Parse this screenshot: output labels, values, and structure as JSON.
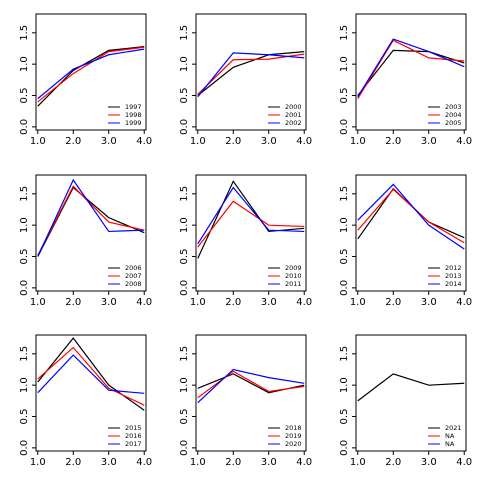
{
  "chart_data": [
    {
      "type": "line",
      "x": [
        1,
        2,
        3,
        4
      ],
      "xlim": [
        0.95,
        4.05
      ],
      "ylim": [
        -0.05,
        1.8
      ],
      "xticks": [
        {
          "value": 1,
          "label": "1.0"
        },
        {
          "value": 2,
          "label": "2.0"
        },
        {
          "value": 3,
          "label": "3.0"
        },
        {
          "value": 4,
          "label": "4.0"
        }
      ],
      "yticks": [
        {
          "value": 0,
          "label": "0.0"
        },
        0.5,
        {
          "value": 1,
          "label": "1.0"
        },
        1.5
      ],
      "legend": "lower right",
      "series": [
        {
          "name": "1997",
          "color": "#000000",
          "values": [
            0.33,
            0.9,
            1.22,
            1.28
          ]
        },
        {
          "name": "1998",
          "color": "#ff0000",
          "values": [
            0.4,
            0.85,
            1.2,
            1.27
          ]
        },
        {
          "name": "1999",
          "color": "#0000ff",
          "values": [
            0.45,
            0.92,
            1.15,
            1.24
          ]
        }
      ]
    },
    {
      "type": "line",
      "x": [
        1,
        2,
        3,
        4
      ],
      "xlim": [
        0.95,
        4.05
      ],
      "ylim": [
        -0.05,
        1.8
      ],
      "xticks": [
        {
          "value": 1,
          "label": "1.0"
        },
        {
          "value": 2,
          "label": "2.0"
        },
        {
          "value": 3,
          "label": "3.0"
        },
        {
          "value": 4,
          "label": "4.0"
        }
      ],
      "yticks": [
        {
          "value": 0,
          "label": "0.0"
        },
        0.5,
        {
          "value": 1,
          "label": "1.0"
        },
        1.5
      ],
      "legend": "lower right",
      "series": [
        {
          "name": "2000",
          "color": "#000000",
          "values": [
            0.5,
            0.95,
            1.15,
            1.2
          ]
        },
        {
          "name": "2001",
          "color": "#ff0000",
          "values": [
            0.52,
            1.07,
            1.08,
            1.16
          ]
        },
        {
          "name": "2002",
          "color": "#0000ff",
          "values": [
            0.48,
            1.18,
            1.15,
            1.1
          ]
        }
      ]
    },
    {
      "type": "line",
      "x": [
        1,
        2,
        3,
        4
      ],
      "xlim": [
        0.95,
        4.05
      ],
      "ylim": [
        -0.05,
        1.8
      ],
      "xticks": [
        {
          "value": 1,
          "label": "1.0"
        },
        {
          "value": 2,
          "label": "2.0"
        },
        {
          "value": 3,
          "label": "3.0"
        },
        {
          "value": 4,
          "label": "4.0"
        }
      ],
      "yticks": [
        {
          "value": 0,
          "label": "0.0"
        },
        0.5,
        {
          "value": 1,
          "label": "1.0"
        },
        1.5
      ],
      "legend": "lower right",
      "series": [
        {
          "name": "2003",
          "color": "#000000",
          "values": [
            0.5,
            1.22,
            1.2,
            1.02
          ]
        },
        {
          "name": "2004",
          "color": "#ff0000",
          "values": [
            0.45,
            1.38,
            1.1,
            1.05
          ]
        },
        {
          "name": "2005",
          "color": "#0000ff",
          "values": [
            0.48,
            1.4,
            1.2,
            0.96
          ]
        }
      ]
    },
    {
      "type": "line",
      "x": [
        1,
        2,
        3,
        4
      ],
      "xlim": [
        0.95,
        4.05
      ],
      "ylim": [
        -0.05,
        1.8
      ],
      "xticks": [
        {
          "value": 1,
          "label": "1.0"
        },
        {
          "value": 2,
          "label": "2.0"
        },
        {
          "value": 3,
          "label": "3.0"
        },
        {
          "value": 4,
          "label": "4.0"
        }
      ],
      "yticks": [
        {
          "value": 0,
          "label": "0.0"
        },
        0.5,
        {
          "value": 1,
          "label": "1.0"
        },
        1.5
      ],
      "legend": "lower right",
      "series": [
        {
          "name": "2006",
          "color": "#000000",
          "values": [
            0.5,
            1.6,
            1.12,
            0.88
          ]
        },
        {
          "name": "2007",
          "color": "#ff0000",
          "values": [
            0.52,
            1.62,
            1.05,
            0.92
          ]
        },
        {
          "name": "2008",
          "color": "#0000ff",
          "values": [
            0.5,
            1.72,
            0.9,
            0.92
          ]
        }
      ]
    },
    {
      "type": "line",
      "x": [
        1,
        2,
        3,
        4
      ],
      "xlim": [
        0.95,
        4.05
      ],
      "ylim": [
        -0.05,
        1.8
      ],
      "xticks": [
        {
          "value": 1,
          "label": "1.0"
        },
        {
          "value": 2,
          "label": "2.0"
        },
        {
          "value": 3,
          "label": "3.0"
        },
        {
          "value": 4,
          "label": "4.0"
        }
      ],
      "yticks": [
        {
          "value": 0,
          "label": "0.0"
        },
        0.5,
        {
          "value": 1,
          "label": "1.0"
        },
        1.5
      ],
      "legend": "lower right",
      "series": [
        {
          "name": "2009",
          "color": "#000000",
          "values": [
            0.47,
            1.7,
            0.9,
            0.95
          ]
        },
        {
          "name": "2010",
          "color": "#ff0000",
          "values": [
            0.65,
            1.38,
            1.0,
            0.98
          ]
        },
        {
          "name": "2011",
          "color": "#0000ff",
          "values": [
            0.7,
            1.6,
            0.92,
            0.9
          ]
        }
      ]
    },
    {
      "type": "line",
      "x": [
        1,
        2,
        3,
        4
      ],
      "xlim": [
        0.95,
        4.05
      ],
      "ylim": [
        -0.05,
        1.8
      ],
      "xticks": [
        {
          "value": 1,
          "label": "1.0"
        },
        {
          "value": 2,
          "label": "2.0"
        },
        {
          "value": 3,
          "label": "3.0"
        },
        {
          "value": 4,
          "label": "4.0"
        }
      ],
      "yticks": [
        {
          "value": 0,
          "label": "0.0"
        },
        0.5,
        {
          "value": 1,
          "label": "1.0"
        },
        1.5
      ],
      "legend": "lower right",
      "series": [
        {
          "name": "2012",
          "color": "#000000",
          "values": [
            0.78,
            1.58,
            1.05,
            0.8
          ]
        },
        {
          "name": "2013",
          "color": "#ff0000",
          "values": [
            0.92,
            1.57,
            1.05,
            0.72
          ]
        },
        {
          "name": "2014",
          "color": "#0000ff",
          "values": [
            1.08,
            1.65,
            1.0,
            0.62
          ]
        }
      ]
    },
    {
      "type": "line",
      "x": [
        1,
        2,
        3,
        4
      ],
      "xlim": [
        0.95,
        4.05
      ],
      "ylim": [
        -0.05,
        1.8
      ],
      "xticks": [
        {
          "value": 1,
          "label": "1.0"
        },
        {
          "value": 2,
          "label": "2.0"
        },
        {
          "value": 3,
          "label": "3.0"
        },
        {
          "value": 4,
          "label": "4.0"
        }
      ],
      "yticks": [
        {
          "value": 0,
          "label": "0.0"
        },
        0.5,
        {
          "value": 1,
          "label": "1.0"
        },
        1.5
      ],
      "legend": "lower right",
      "series": [
        {
          "name": "2015",
          "color": "#000000",
          "values": [
            1.05,
            1.75,
            1.0,
            0.6
          ]
        },
        {
          "name": "2016",
          "color": "#ff0000",
          "values": [
            1.1,
            1.6,
            0.95,
            0.68
          ]
        },
        {
          "name": "2017",
          "color": "#0000ff",
          "values": [
            0.88,
            1.48,
            0.92,
            0.87
          ]
        }
      ]
    },
    {
      "type": "line",
      "x": [
        1,
        2,
        3,
        4
      ],
      "xlim": [
        0.95,
        4.05
      ],
      "ylim": [
        -0.05,
        1.8
      ],
      "xticks": [
        {
          "value": 1,
          "label": "1.0"
        },
        {
          "value": 2,
          "label": "2.0"
        },
        {
          "value": 3,
          "label": "3.0"
        },
        {
          "value": 4,
          "label": "4.0"
        }
      ],
      "yticks": [
        {
          "value": 0,
          "label": "0.0"
        },
        0.5,
        {
          "value": 1,
          "label": "1.0"
        },
        1.5
      ],
      "legend": "lower right",
      "series": [
        {
          "name": "2018",
          "color": "#000000",
          "values": [
            0.95,
            1.18,
            0.88,
            1.0
          ]
        },
        {
          "name": "2019",
          "color": "#ff0000",
          "values": [
            0.8,
            1.22,
            0.9,
            0.98
          ]
        },
        {
          "name": "2020",
          "color": "#0000ff",
          "values": [
            0.72,
            1.25,
            1.12,
            1.03
          ]
        }
      ]
    },
    {
      "type": "line",
      "x": [
        1,
        2,
        3,
        4
      ],
      "xlim": [
        0.95,
        4.05
      ],
      "ylim": [
        -0.05,
        1.8
      ],
      "xticks": [
        {
          "value": 1,
          "label": "1.0"
        },
        {
          "value": 2,
          "label": "2.0"
        },
        {
          "value": 3,
          "label": "3.0"
        },
        {
          "value": 4,
          "label": "4.0"
        }
      ],
      "yticks": [
        {
          "value": 0,
          "label": "0.0"
        },
        0.5,
        {
          "value": 1,
          "label": "1.0"
        },
        1.5
      ],
      "legend": "lower right",
      "series": [
        {
          "name": "2021",
          "color": "#000000",
          "values": [
            0.75,
            1.18,
            1.0,
            1.03
          ]
        },
        {
          "name": "NA",
          "color": "#ff0000",
          "values": [
            null,
            null,
            null,
            null
          ]
        },
        {
          "name": "NA",
          "color": "#0000ff",
          "values": [
            null,
            null,
            null,
            null
          ]
        }
      ]
    }
  ]
}
